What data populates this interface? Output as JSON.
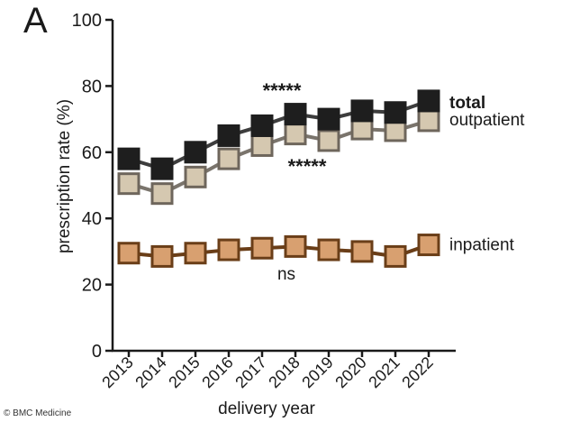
{
  "panel_label": "A",
  "credit": {
    "text": "© BMC Medicine"
  },
  "chart_data": {
    "type": "line",
    "title": "",
    "xlabel": "delivery year",
    "ylabel": "prescription rate (%)",
    "ylim": [
      0,
      100
    ],
    "yticks": [
      0,
      20,
      40,
      60,
      80,
      100
    ],
    "categories": [
      "2013",
      "2014",
      "2015",
      "2016",
      "2017",
      "2018",
      "2019",
      "2020",
      "2021",
      "2022"
    ],
    "grid": false,
    "legend": "inline labels at right end of each series",
    "series": [
      {
        "name": "total",
        "key": "total",
        "label_bold": true,
        "fill": "#1e1e1e",
        "stroke": "#1e1e1e",
        "line": "#3d3d3d",
        "values": [
          58,
          55,
          60,
          65,
          68,
          71.5,
          70,
          72.5,
          72,
          75.5
        ]
      },
      {
        "name": "outpatient",
        "key": "outpatient",
        "label_bold": false,
        "fill": "#d5c8b0",
        "stroke": "#6e665c",
        "line": "#7a746c",
        "values": [
          50.5,
          47.5,
          52.5,
          58,
          62,
          65.5,
          63.5,
          67,
          66.5,
          69.5
        ]
      },
      {
        "name": "inpatient",
        "key": "inpatient",
        "label_bold": false,
        "fill": "#d8a070",
        "stroke": "#6a3e18",
        "line": "#6a3e18",
        "values": [
          29.5,
          28.5,
          29.5,
          30.5,
          31,
          31.5,
          30.5,
          30,
          28.5,
          32
        ]
      }
    ],
    "annotations": [
      {
        "text": "*****",
        "near": "above total 2017–2018"
      },
      {
        "text": "*****",
        "near": "below outpatient 2018–2019"
      },
      {
        "text": "ns",
        "near": "below inpatient 2018"
      }
    ]
  }
}
